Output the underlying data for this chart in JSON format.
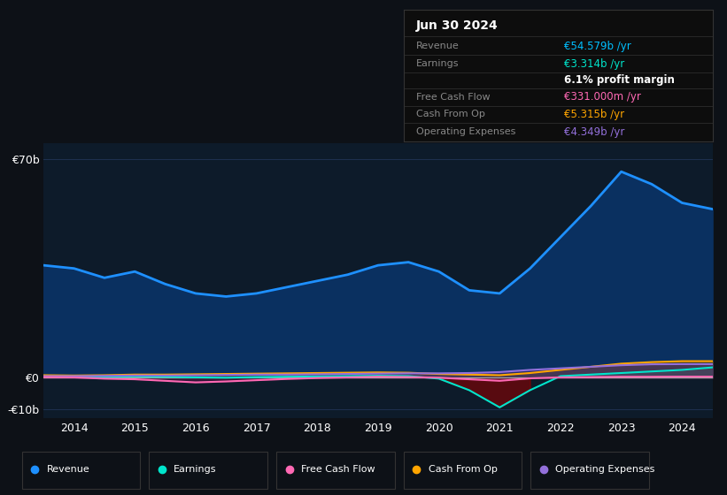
{
  "bg_color": "#0d1117",
  "plot_bg_color": "#0d1b2a",
  "grid_color": "#1e3050",
  "years": [
    2013.5,
    2014.0,
    2014.5,
    2015.0,
    2015.5,
    2016.0,
    2016.5,
    2017.0,
    2017.5,
    2018.0,
    2018.5,
    2019.0,
    2019.5,
    2020.0,
    2020.5,
    2021.0,
    2021.5,
    2022.0,
    2022.5,
    2023.0,
    2023.5,
    2024.0,
    2024.5
  ],
  "revenue": [
    36,
    35,
    32,
    34,
    30,
    27,
    26,
    27,
    29,
    31,
    33,
    36,
    37,
    34,
    28,
    27,
    35,
    45,
    55,
    66,
    62,
    56,
    54
  ],
  "earnings": [
    0.5,
    0.3,
    0.2,
    0.4,
    0.3,
    0.1,
    0.0,
    0.2,
    0.3,
    0.4,
    0.5,
    0.6,
    0.5,
    -0.3,
    -4.0,
    -9.5,
    -4.0,
    0.5,
    1.0,
    1.5,
    2.0,
    2.5,
    3.3
  ],
  "free_cash_flow": [
    0.2,
    0.1,
    -0.3,
    -0.5,
    -1.0,
    -1.5,
    -1.2,
    -0.8,
    -0.4,
    -0.1,
    0.1,
    0.3,
    0.2,
    0.0,
    -0.5,
    -1.0,
    -0.2,
    0.1,
    0.2,
    0.3,
    0.3,
    0.35,
    0.33
  ],
  "cash_from_op": [
    0.8,
    0.7,
    0.8,
    1.0,
    1.0,
    1.1,
    1.2,
    1.3,
    1.4,
    1.5,
    1.6,
    1.7,
    1.6,
    1.2,
    1.0,
    0.8,
    1.5,
    2.5,
    3.5,
    4.5,
    5.0,
    5.3,
    5.3
  ],
  "op_expenses": [
    0.5,
    0.5,
    0.6,
    0.7,
    0.7,
    0.8,
    0.9,
    1.0,
    1.0,
    1.1,
    1.2,
    1.3,
    1.4,
    1.4,
    1.5,
    1.8,
    2.5,
    3.0,
    3.5,
    4.0,
    4.3,
    4.35,
    4.35
  ],
  "revenue_color": "#1e90ff",
  "revenue_fill": "#0a3060",
  "earnings_color": "#00e5cc",
  "fcf_color": "#ff69b4",
  "cashop_color": "#ffa500",
  "opex_color": "#9370db",
  "ylim": [
    -13,
    75
  ],
  "xticks": [
    2014,
    2015,
    2016,
    2017,
    2018,
    2019,
    2020,
    2021,
    2022,
    2023,
    2024
  ],
  "box_date": "Jun 30 2024",
  "box_rows": [
    {
      "label": "Revenue",
      "value": "€54.579b /yr",
      "color": "#00bfff"
    },
    {
      "label": "Earnings",
      "value": "€3.314b /yr",
      "color": "#00e5cc"
    },
    {
      "label": "",
      "value": "6.1% profit margin",
      "color": "#ffffff"
    },
    {
      "label": "Free Cash Flow",
      "value": "€331.000m /yr",
      "color": "#ff69b4"
    },
    {
      "label": "Cash From Op",
      "value": "€5.315b /yr",
      "color": "#ffa500"
    },
    {
      "label": "Operating Expenses",
      "value": "€4.349b /yr",
      "color": "#9370db"
    }
  ],
  "legend_items": [
    {
      "label": "Revenue",
      "color": "#1e90ff"
    },
    {
      "label": "Earnings",
      "color": "#00e5cc"
    },
    {
      "label": "Free Cash Flow",
      "color": "#ff69b4"
    },
    {
      "label": "Cash From Op",
      "color": "#ffa500"
    },
    {
      "label": "Operating Expenses",
      "color": "#9370db"
    }
  ]
}
